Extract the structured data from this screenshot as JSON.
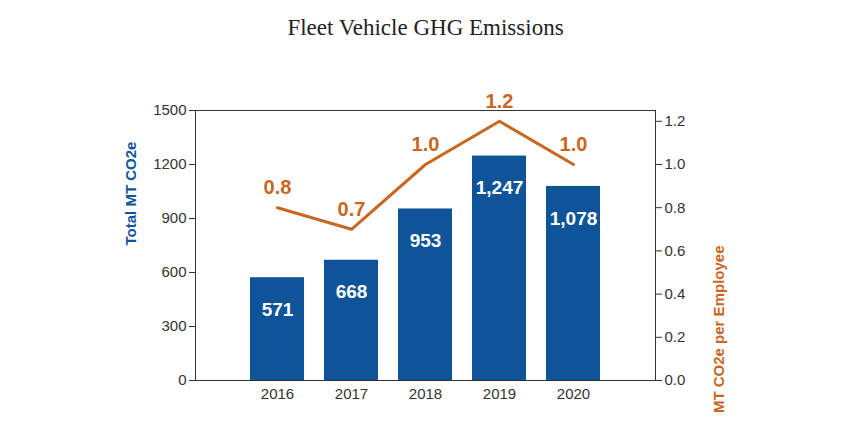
{
  "chart_data": {
    "type": "bar",
    "title": "Fleet Vehicle GHG Emissions",
    "categories": [
      "2016",
      "2017",
      "2018",
      "2019",
      "2020"
    ],
    "series": [
      {
        "type": "bar",
        "color": "#0f5499",
        "values": [
          571,
          668,
          953,
          1247,
          1078
        ],
        "value_labels": [
          "571",
          "668",
          "953",
          "1,247",
          "1,078"
        ]
      },
      {
        "type": "line",
        "axis": "y2",
        "color": "#c9661f",
        "values": [
          0.8,
          0.7,
          1.0,
          1.2,
          1.0
        ],
        "value_labels": [
          "0.8",
          "0.7",
          "1.0",
          "1.2",
          "1.0"
        ]
      }
    ],
    "ylabel": "Total MT CO2e",
    "y2label": "MT CO2e per Employee",
    "ylim": [
      0,
      1500
    ],
    "yticks": [
      0,
      300,
      600,
      900,
      1200,
      1500
    ],
    "y2lim": [
      0,
      1.25
    ],
    "y2ticks": [
      {
        "value": 0,
        "label": "0.0"
      },
      0.2,
      0.4,
      0.6,
      0.8,
      {
        "value": 1,
        "label": "1.0"
      },
      1.2
    ],
    "data_labels": true,
    "grid": false
  }
}
